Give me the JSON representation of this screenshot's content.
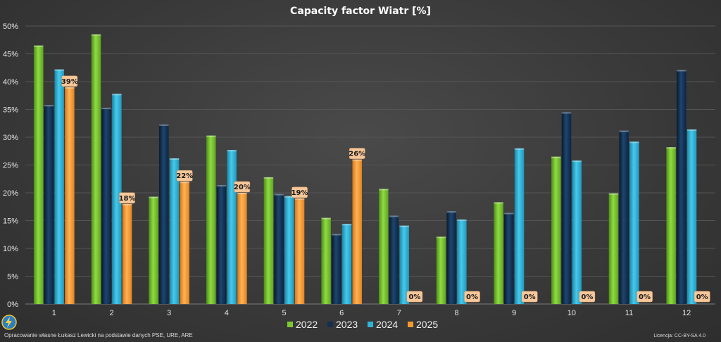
{
  "footer": {
    "source": "Opracowanie własne Łukasz Lewicki na podstawie danych PSE, URE, ARE",
    "license": "Licencja: CC-BY-SA 4.0"
  },
  "colors": {
    "2022": "#7cc932",
    "2023": "#14304f",
    "2024": "#2fb4d8",
    "2025": "#f39a32",
    "label_bg": "#f7c79a"
  },
  "logo_icon": "lightning-bolt-icon",
  "chart_data": {
    "type": "bar",
    "title": "Capacity factor Wiatr [%]",
    "categories": [
      "1",
      "2",
      "3",
      "4",
      "5",
      "6",
      "7",
      "8",
      "9",
      "10",
      "11",
      "12"
    ],
    "series": [
      {
        "name": "2022",
        "values": [
          46.5,
          48.5,
          19.3,
          30.3,
          22.8,
          15.5,
          20.7,
          12.1,
          18.3,
          26.5,
          19.9,
          28.2
        ]
      },
      {
        "name": "2023",
        "values": [
          35.8,
          35.3,
          32.3,
          21.4,
          19.8,
          12.6,
          15.9,
          16.7,
          16.4,
          34.5,
          31.2,
          42.1
        ]
      },
      {
        "name": "2024",
        "values": [
          42.2,
          37.8,
          26.2,
          27.7,
          19.4,
          14.4,
          14.1,
          15.2,
          28.0,
          25.8,
          29.2,
          31.4
        ]
      },
      {
        "name": "2025",
        "values": [
          39,
          18,
          22,
          20,
          19,
          26,
          0,
          0,
          0,
          0,
          0,
          0
        ]
      }
    ],
    "data_labels": [
      "39%",
      "18%",
      "22%",
      "20%",
      "19%",
      "26%",
      "0%",
      "0%",
      "0%",
      "0%",
      "0%",
      "0%"
    ],
    "y_ticks": [
      "0%",
      "5%",
      "10%",
      "15%",
      "20%",
      "25%",
      "30%",
      "35%",
      "40%",
      "45%",
      "50%"
    ],
    "ylim": [
      0,
      50
    ],
    "grid": true,
    "legend_position": "bottom"
  }
}
